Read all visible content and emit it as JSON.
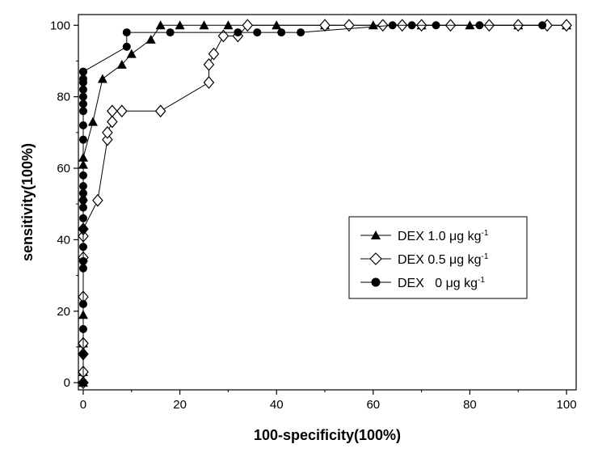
{
  "chart_data": {
    "type": "line",
    "title": "",
    "xlabel": "100-specificity(100%)",
    "ylabel": "sensitivity(100%)",
    "xlim": [
      -1,
      102
    ],
    "ylim": [
      -2,
      103
    ],
    "x_ticks": [
      0,
      20,
      40,
      60,
      80,
      100
    ],
    "y_ticks": [
      0,
      20,
      40,
      60,
      80,
      100
    ],
    "x_tick_labels": [
      "0",
      "20",
      "40",
      "60",
      "80",
      "100"
    ],
    "y_tick_labels": [
      "0",
      "20",
      "40",
      "60",
      "80",
      "100"
    ],
    "grid": false,
    "legend_position": "center-right",
    "series": [
      {
        "name": "DEX 1.0 μg kg-1",
        "legend_main": "DEX 1.0 μg kg",
        "legend_sup": "-1",
        "marker": "filled-triangle",
        "color": "#000000",
        "x": [
          0,
          0,
          0,
          0,
          0,
          0,
          0,
          0,
          2,
          4,
          8,
          10,
          14,
          16,
          20,
          25,
          30,
          40,
          50,
          60,
          70,
          80,
          90,
          100
        ],
        "y": [
          0,
          3,
          11,
          19,
          35,
          52,
          61,
          63,
          73,
          85,
          89,
          92,
          96,
          100,
          100,
          100,
          100,
          100,
          100,
          100,
          100,
          100,
          100,
          100
        ]
      },
      {
        "name": "DEX 0.5 μg kg-1",
        "legend_main": "DEX 0.5 μg kg",
        "legend_sup": "-1",
        "marker": "open-diamond",
        "color": "#000000",
        "x": [
          0,
          0,
          0,
          0,
          0,
          0,
          0,
          0,
          3,
          5,
          5,
          6,
          6,
          8,
          16,
          26,
          26,
          27,
          29,
          32,
          34,
          50,
          55,
          62,
          66,
          70,
          76,
          84,
          90,
          96,
          100
        ],
        "y": [
          0,
          3,
          8,
          11,
          24,
          35,
          41,
          43,
          51,
          68,
          70,
          73,
          76,
          76,
          76,
          84,
          89,
          92,
          97,
          97,
          100,
          100,
          100,
          100,
          100,
          100,
          100,
          100,
          100,
          100,
          100
        ]
      },
      {
        "name": "DEX   0 μg kg-1",
        "legend_main": "DEX   0 μg kg",
        "legend_sup": "-1",
        "marker": "filled-circle",
        "color": "#000000",
        "x": [
          0,
          0,
          0,
          0,
          0,
          0,
          0,
          0,
          0,
          0,
          0,
          0,
          0,
          0,
          0,
          0,
          0,
          0,
          0,
          0,
          0,
          0,
          0,
          0,
          0,
          9,
          9,
          18,
          32,
          36,
          41,
          45,
          64,
          68,
          73,
          82,
          95
        ],
        "y": [
          0,
          8,
          15,
          22,
          32,
          34,
          38,
          43,
          46,
          49,
          51,
          53,
          55,
          58,
          68,
          72,
          76,
          78,
          80,
          82,
          84,
          85,
          87,
          87,
          87,
          94,
          98,
          98,
          98,
          98,
          98,
          98,
          100,
          100,
          100,
          100,
          100
        ]
      }
    ]
  }
}
